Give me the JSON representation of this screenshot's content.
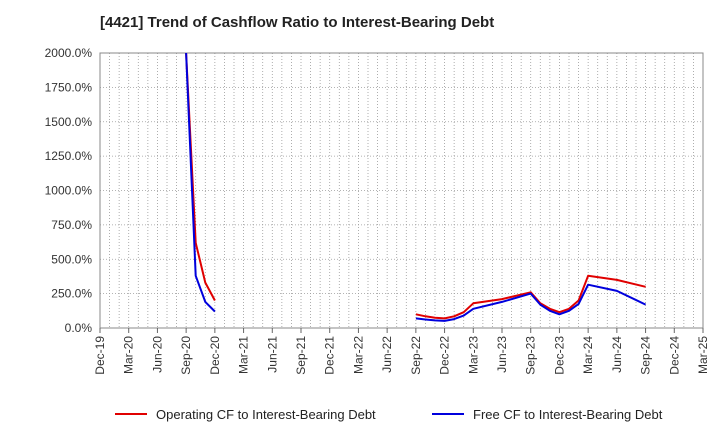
{
  "chart_data": {
    "type": "line",
    "title": "[4421]  Trend of Cashflow Ratio to Interest-Bearing Debt",
    "xlabel": "",
    "ylabel": "",
    "ylim": [
      0,
      2000
    ],
    "y_ticks": [
      "0.0%",
      "250.0%",
      "500.0%",
      "750.0%",
      "1000.0%",
      "1250.0%",
      "1500.0%",
      "1750.0%",
      "2000.0%"
    ],
    "x_ticks": [
      "Dec-19",
      "Mar-20",
      "Jun-20",
      "Sep-20",
      "Dec-20",
      "Mar-21",
      "Jun-21",
      "Sep-21",
      "Dec-21",
      "Mar-22",
      "Jun-22",
      "Sep-22",
      "Dec-22",
      "Mar-23",
      "Jun-23",
      "Sep-23",
      "Dec-23",
      "Mar-24",
      "Jun-24",
      "Sep-24",
      "Dec-24",
      "Mar-25"
    ],
    "grid": true,
    "legend_position": "bottom",
    "series": [
      {
        "name": "Operating CF to Interest-Bearing Debt",
        "color": "#e00000",
        "points": [
          [
            "Sep-20",
            2000
          ],
          [
            "Oct-20",
            620
          ],
          [
            "Nov-20",
            330
          ],
          [
            "Dec-20",
            200
          ],
          [
            "Sep-22",
            100
          ],
          [
            "Oct-22",
            85
          ],
          [
            "Nov-22",
            75
          ],
          [
            "Dec-22",
            70
          ],
          [
            "Jan-23",
            85
          ],
          [
            "Feb-23",
            115
          ],
          [
            "Mar-23",
            180
          ],
          [
            "Jun-23",
            210
          ],
          [
            "Sep-23",
            260
          ],
          [
            "Oct-23",
            180
          ],
          [
            "Nov-23",
            140
          ],
          [
            "Dec-23",
            115
          ],
          [
            "Jan-24",
            140
          ],
          [
            "Feb-24",
            200
          ],
          [
            "Mar-24",
            380
          ],
          [
            "Jun-24",
            350
          ],
          [
            "Sep-24",
            300
          ]
        ]
      },
      {
        "name": "Free CF to Interest-Bearing Debt",
        "color": "#0000dd",
        "points": [
          [
            "Sep-20",
            2000
          ],
          [
            "Oct-20",
            380
          ],
          [
            "Nov-20",
            190
          ],
          [
            "Dec-20",
            120
          ],
          [
            "Sep-22",
            70
          ],
          [
            "Oct-22",
            62
          ],
          [
            "Nov-22",
            55
          ],
          [
            "Dec-22",
            52
          ],
          [
            "Jan-23",
            65
          ],
          [
            "Feb-23",
            90
          ],
          [
            "Mar-23",
            140
          ],
          [
            "Jun-23",
            190
          ],
          [
            "Sep-23",
            250
          ],
          [
            "Oct-23",
            170
          ],
          [
            "Nov-23",
            125
          ],
          [
            "Dec-23",
            100
          ],
          [
            "Jan-24",
            125
          ],
          [
            "Feb-24",
            175
          ],
          [
            "Mar-24",
            315
          ],
          [
            "Jun-24",
            270
          ],
          [
            "Sep-24",
            170
          ]
        ]
      }
    ]
  }
}
